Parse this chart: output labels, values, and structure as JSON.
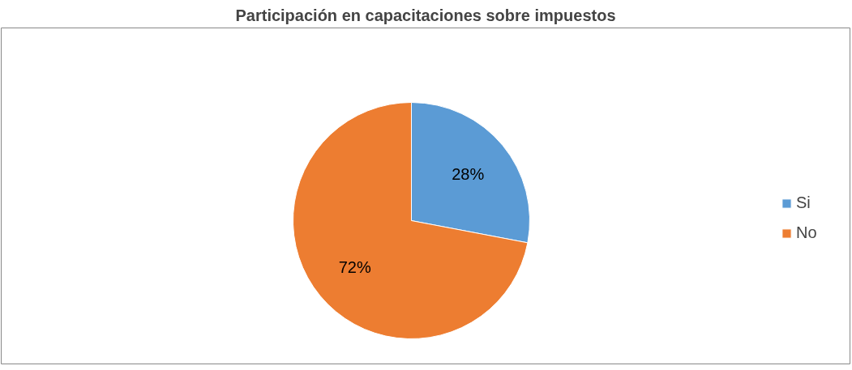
{
  "chart_data": {
    "type": "pie",
    "title": "Participación en capacitaciones sobre impuestos",
    "categories": [
      "Si",
      "No"
    ],
    "values": [
      28,
      72
    ],
    "colors": [
      "#5b9bd5",
      "#ed7d31"
    ],
    "value_labels": [
      "28%",
      "72%"
    ],
    "legend": "right"
  }
}
